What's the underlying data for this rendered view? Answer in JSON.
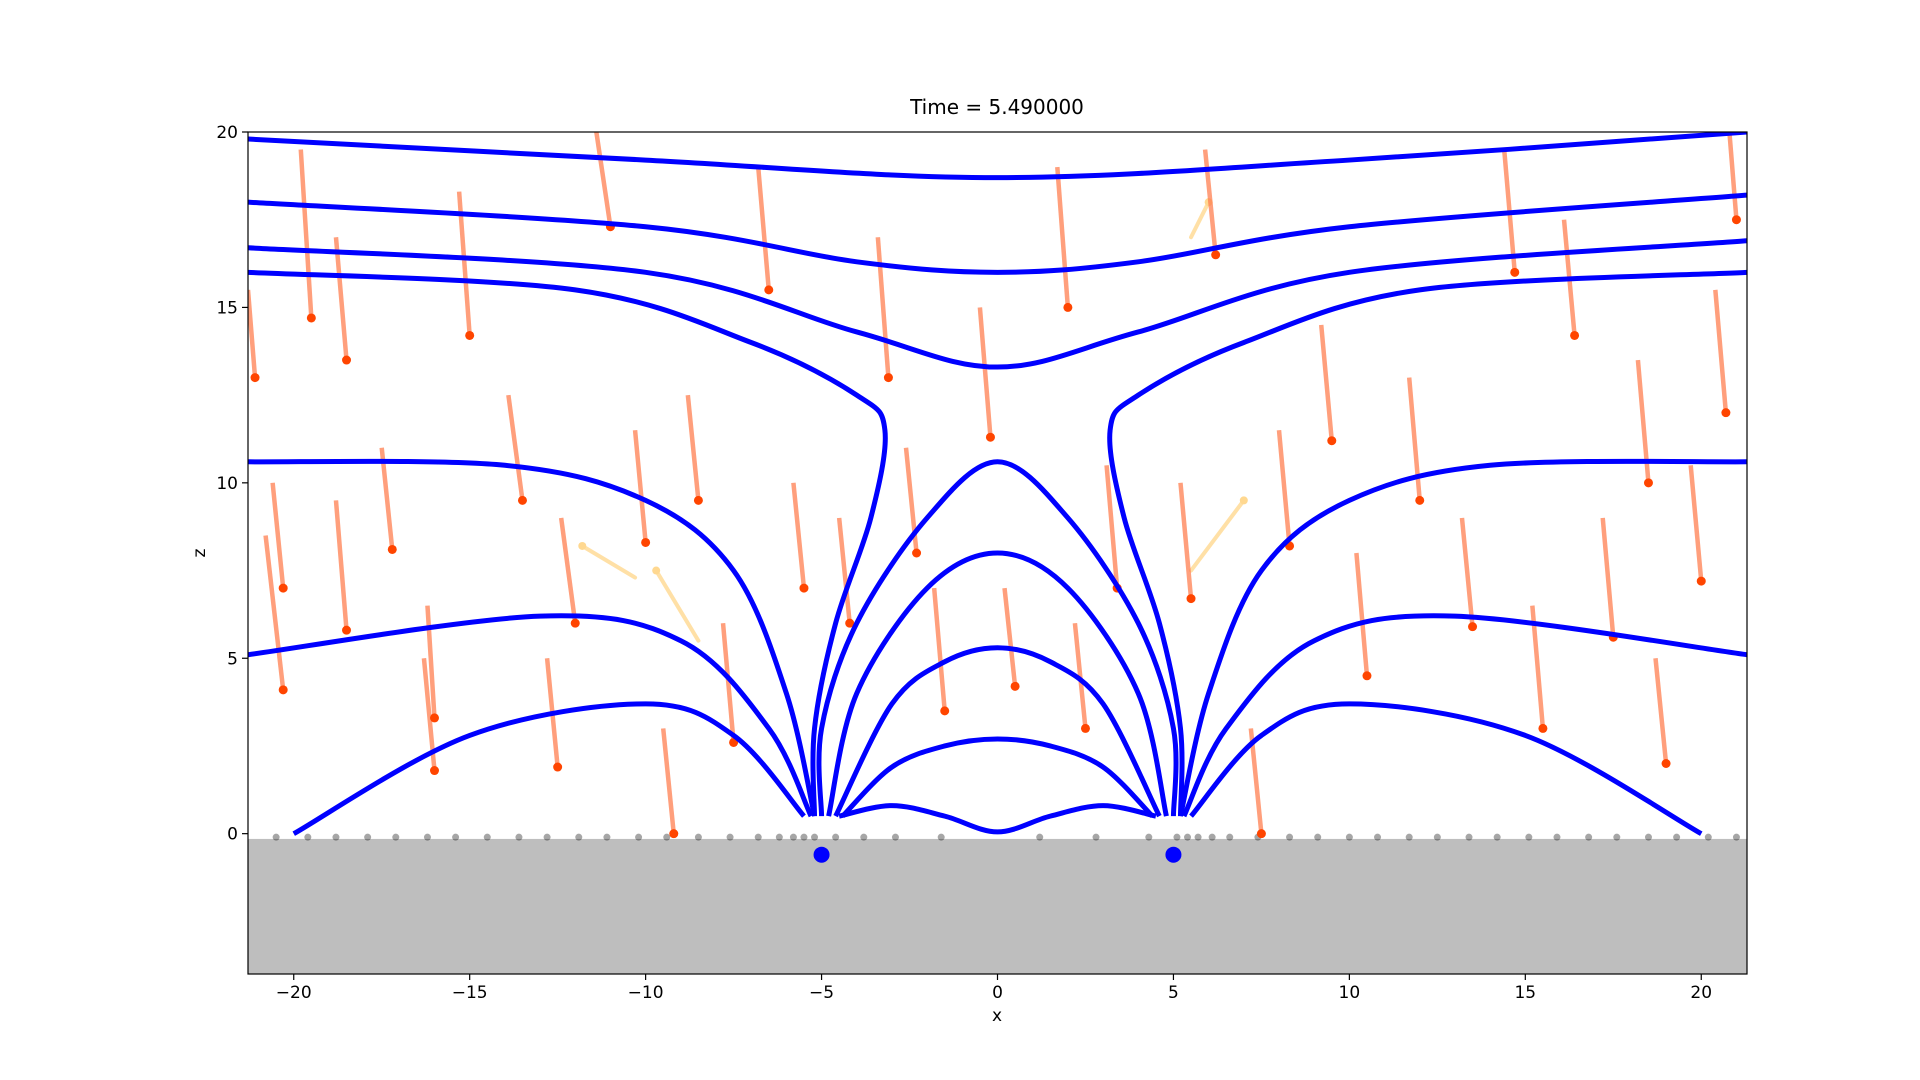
{
  "chart_data": {
    "type": "field",
    "title": "Time = 5.490000",
    "x_label": "x",
    "y_label": "z",
    "xlim": [
      -21.3,
      21.3
    ],
    "ylim": [
      -4,
      20
    ],
    "xticks": [
      {
        "value": -20,
        "label": "−20"
      },
      {
        "value": -15,
        "label": "−15"
      },
      {
        "value": -10,
        "label": "−10"
      },
      {
        "value": -5,
        "label": "−5"
      },
      0,
      5,
      10,
      15,
      20
    ],
    "yticks": [
      0,
      5,
      10,
      15,
      20
    ],
    "ground_top": -0.15,
    "ground_color": "#bebebe",
    "field_color": "#0000ff",
    "field_lines": [
      {
        "x": [
          -21.3,
          -10,
          0,
          10,
          21.3
        ],
        "y": [
          19.8,
          19.2,
          18.7,
          19.2,
          20
        ]
      },
      {
        "x": [
          -21.3,
          -10,
          -4,
          0,
          4,
          10,
          21.3
        ],
        "y": [
          18,
          17.3,
          16.3,
          16,
          16.3,
          17.3,
          18.2
        ]
      },
      {
        "x": [
          -21.3,
          -10,
          -4,
          0,
          4,
          10,
          21.3
        ],
        "y": [
          16.7,
          16,
          14.3,
          13.3,
          14.3,
          16,
          16.9
        ]
      },
      {
        "x": [
          -21.3,
          -12,
          -7,
          -4,
          -3.2,
          -3.6,
          -4.6,
          -5.2,
          -5.2
        ],
        "y": [
          16,
          15.5,
          14,
          12.5,
          11.5,
          9,
          6,
          3,
          0.5
        ]
      },
      {
        "x": [
          5.2,
          5.2,
          4.6,
          3.6,
          3.2,
          4,
          7,
          12,
          21.3
        ],
        "y": [
          0.5,
          3,
          6,
          9,
          11.5,
          12.5,
          14,
          15.5,
          16
        ]
      },
      {
        "x": [
          -21.3,
          -14,
          -10,
          -7.5,
          -6,
          -5.2
        ],
        "y": [
          10.6,
          10.5,
          9.5,
          7.5,
          4,
          0.5
        ]
      },
      {
        "x": [
          5.2,
          6,
          7.5,
          10,
          14,
          21.3
        ],
        "y": [
          0.5,
          4,
          7.5,
          9.5,
          10.5,
          10.6
        ]
      },
      {
        "x": [
          -21.3,
          -13,
          -9,
          -6.5,
          -5.3
        ],
        "y": [
          5.1,
          6.2,
          5.5,
          3,
          0.5
        ]
      },
      {
        "x": [
          5.3,
          6.5,
          9,
          13,
          21.3
        ],
        "y": [
          0.5,
          3,
          5.5,
          6.2,
          5.1
        ]
      },
      {
        "x": [
          -20,
          -15,
          -10,
          -7.5,
          -5.5
        ],
        "y": [
          0,
          2.8,
          3.7,
          2.8,
          0.5
        ]
      },
      {
        "x": [
          5.5,
          7.5,
          10,
          15,
          20
        ],
        "y": [
          0.5,
          2.8,
          3.7,
          2.8,
          0
        ]
      },
      {
        "x": [
          -5,
          -5,
          -4,
          -2,
          0,
          2,
          4,
          5,
          5
        ],
        "y": [
          0.5,
          3,
          6,
          9,
          10.6,
          9,
          6,
          3,
          0.5
        ]
      },
      {
        "x": [
          -4.8,
          -4,
          -2,
          0,
          2,
          4,
          4.8
        ],
        "y": [
          0.5,
          4,
          7,
          8,
          7,
          4,
          0.5
        ]
      },
      {
        "x": [
          -4.6,
          -3,
          -1.5,
          0,
          1.5,
          3,
          4.6
        ],
        "y": [
          0.5,
          3.7,
          4.9,
          5.3,
          4.9,
          3.7,
          0.5
        ]
      },
      {
        "x": [
          -4.4,
          -3,
          -1.5,
          0,
          1.5,
          3,
          4.4
        ],
        "y": [
          0.5,
          1.9,
          2.5,
          2.7,
          2.5,
          1.9,
          0.5
        ]
      },
      {
        "x": [
          -4.5,
          -3,
          -1.5,
          0,
          1.5,
          3,
          4.5
        ],
        "y": [
          0.5,
          0.8,
          0.5,
          0.05,
          0.5,
          0.8,
          0.5
        ]
      }
    ],
    "particles": {
      "trail_color": "#ff7f50",
      "head_color": "#ff4500",
      "x": [
        -21.1,
        -20.3,
        -20.3,
        -19.5,
        -18.5,
        -18.5,
        -17.2,
        -16,
        -16,
        -15,
        -13.5,
        -12.5,
        -12,
        -11,
        -10,
        -9.2,
        -8.5,
        -7.5,
        -6.5,
        -5.5,
        -4.2,
        -3.1,
        -2.3,
        -1.5,
        -0.2,
        0.5,
        2,
        2.5,
        3.4,
        5.5,
        6.2,
        7.5,
        8.3,
        9.5,
        10.5,
        12,
        13.5,
        14.7,
        15.5,
        16.4,
        17.5,
        18.5,
        19,
        20,
        20.7,
        21
      ],
      "z": [
        13,
        4.1,
        7,
        14.7,
        5.8,
        13.5,
        8.1,
        1.8,
        3.3,
        14.2,
        9.5,
        1.9,
        6,
        17.3,
        8.3,
        0,
        9.5,
        2.6,
        15.5,
        7,
        6,
        13,
        8,
        3.5,
        11.3,
        4.2,
        15,
        3,
        7,
        6.7,
        16.5,
        0,
        8.2,
        11.2,
        4.5,
        9.5,
        5.9,
        16,
        3,
        14.2,
        5.6,
        10,
        2,
        7.2,
        12,
        17.5
      ],
      "tail_x": [
        -21.3,
        -20.8,
        -20.6,
        -19.8,
        -18.8,
        -18.8,
        -17.5,
        -16.3,
        -16.2,
        -15.3,
        -13.9,
        -12.8,
        -12.4,
        -11.4,
        -10.3,
        -9.5,
        -8.8,
        -7.8,
        -6.8,
        -5.8,
        -4.5,
        -3.4,
        -2.6,
        -1.8,
        -0.5,
        0.2,
        1.7,
        2.2,
        3.1,
        5.2,
        5.9,
        7.2,
        8,
        9.2,
        10.2,
        11.7,
        13.2,
        14.4,
        15.2,
        16.1,
        17.2,
        18.2,
        18.7,
        19.7,
        20.4,
        20.8
      ],
      "tail_z": [
        15.5,
        8.5,
        10,
        19.5,
        9.5,
        17,
        11,
        5,
        6.5,
        18.3,
        12.5,
        5,
        9,
        20,
        11.5,
        3,
        12.5,
        6,
        19,
        10,
        9,
        17,
        11,
        7,
        15,
        7,
        19,
        6,
        10.5,
        10,
        19.5,
        3,
        11.5,
        14.5,
        8,
        13,
        9,
        19.5,
        6.5,
        17.5,
        9,
        13.5,
        5,
        10.5,
        15.5,
        20
      ]
    },
    "faded_particles": {
      "color": "#ffd890",
      "x": [
        -11.8,
        -9.7,
        7,
        6
      ],
      "z": [
        8.2,
        7.5,
        9.5,
        18
      ],
      "tail_x": [
        -10.3,
        -8.5,
        5.5,
        5.5
      ],
      "tail_z": [
        7.3,
        5.5,
        7.5,
        17
      ]
    },
    "ground_particles": {
      "color": "#000000",
      "z": -0.1,
      "x": [
        -20.5,
        -19.6,
        -18.8,
        -17.9,
        -17.1,
        -16.2,
        -15.4,
        -14.5,
        -13.6,
        -12.8,
        -11.9,
        -11.1,
        -10.2,
        -9.4,
        -8.5,
        -7.6,
        -6.8,
        -6.2,
        -5.8,
        -5.5,
        -5.2,
        -4.6,
        -3.8,
        -2.9,
        -1.6,
        1.2,
        2.8,
        4.3,
        5.1,
        5.4,
        5.7,
        6.1,
        6.6,
        7.4,
        8.3,
        9.1,
        10,
        10.8,
        11.7,
        12.5,
        13.4,
        14.2,
        15.1,
        15.9,
        16.8,
        17.6,
        18.5,
        19.3,
        20.2,
        21
      ]
    },
    "sources": {
      "color": "#0000ff",
      "x": [
        -5,
        5
      ],
      "z": [
        -0.6,
        -0.6
      ]
    }
  }
}
